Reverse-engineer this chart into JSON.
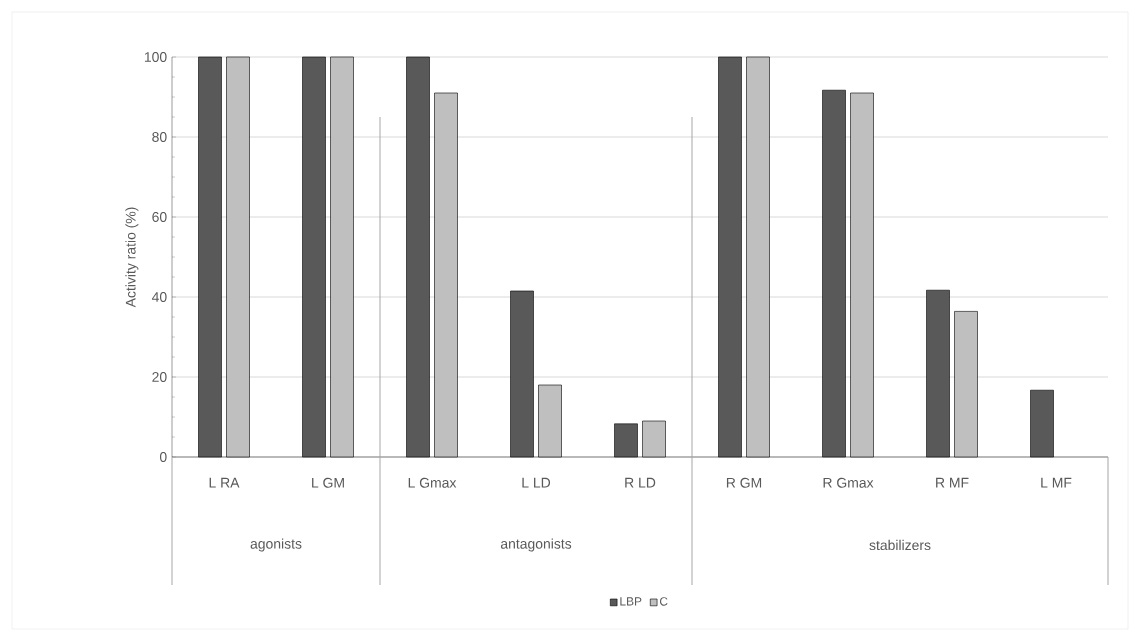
{
  "chart_data": {
    "type": "bar",
    "ylabel": "Activity ratio (%)",
    "categories": [
      "L RA",
      "L GM",
      "L Gmax",
      "L LD",
      "R LD",
      "R GM",
      "R Gmax",
      "R MF",
      "L MF"
    ],
    "series": [
      {
        "name": "LBP",
        "color": "#595959",
        "values": [
          100,
          100,
          100,
          41.5,
          8.3,
          100,
          91.7,
          41.7,
          16.7
        ]
      },
      {
        "name": "C",
        "color": "#bfbfbf",
        "values": [
          100,
          100,
          91,
          18,
          9,
          100,
          91,
          36.4,
          null
        ]
      }
    ],
    "annotations": [
      "agonists",
      "antagonists",
      "stabilizers"
    ],
    "ylim": [
      0,
      100
    ],
    "yticks": [
      0,
      20,
      40,
      60,
      80,
      100
    ],
    "grid": "y",
    "legend": "bottom"
  }
}
